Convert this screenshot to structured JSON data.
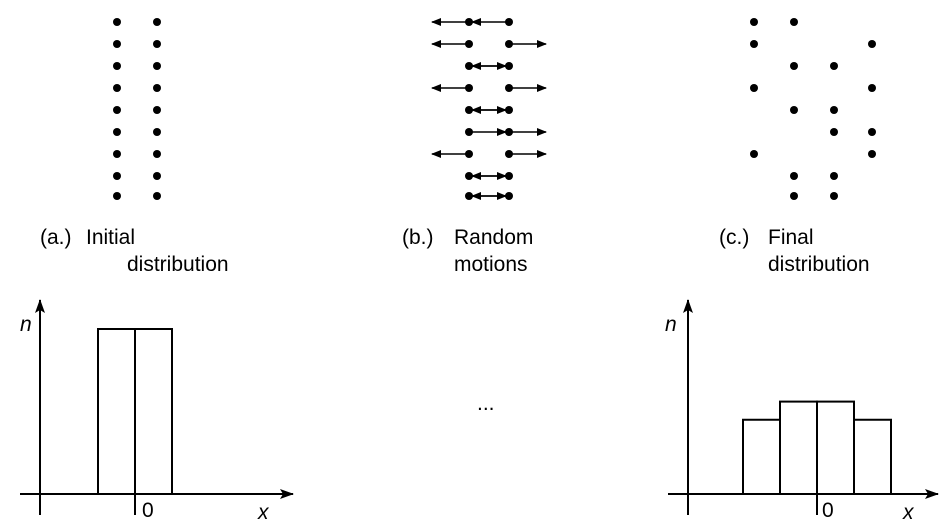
{
  "panels": [
    {
      "tag": "(a.)",
      "line1": "Initial",
      "line2": "distribution"
    },
    {
      "tag": "(b.)",
      "line1": "Random",
      "line2": "motions"
    },
    {
      "tag": "(c.)",
      "line1": "Final",
      "line2": "distribution"
    }
  ],
  "plots": {
    "initial": {
      "ylabel": "n",
      "xlabel": "x",
      "zero_label": "0"
    },
    "final": {
      "ylabel": "n",
      "xlabel": "x",
      "zero_label": "0"
    }
  },
  "ellipsis": "...",
  "colors": {
    "ink": "#000000",
    "background": "#ffffff"
  },
  "chart_data": [
    {
      "type": "bar",
      "name": "initial",
      "categories": [
        "-1",
        "0"
      ],
      "values": [
        1,
        1
      ]
    },
    {
      "type": "bar",
      "name": "final",
      "categories": [
        "-2",
        "-1",
        "0",
        "1"
      ],
      "values": [
        0.45,
        0.56,
        0.56,
        0.45
      ]
    }
  ]
}
